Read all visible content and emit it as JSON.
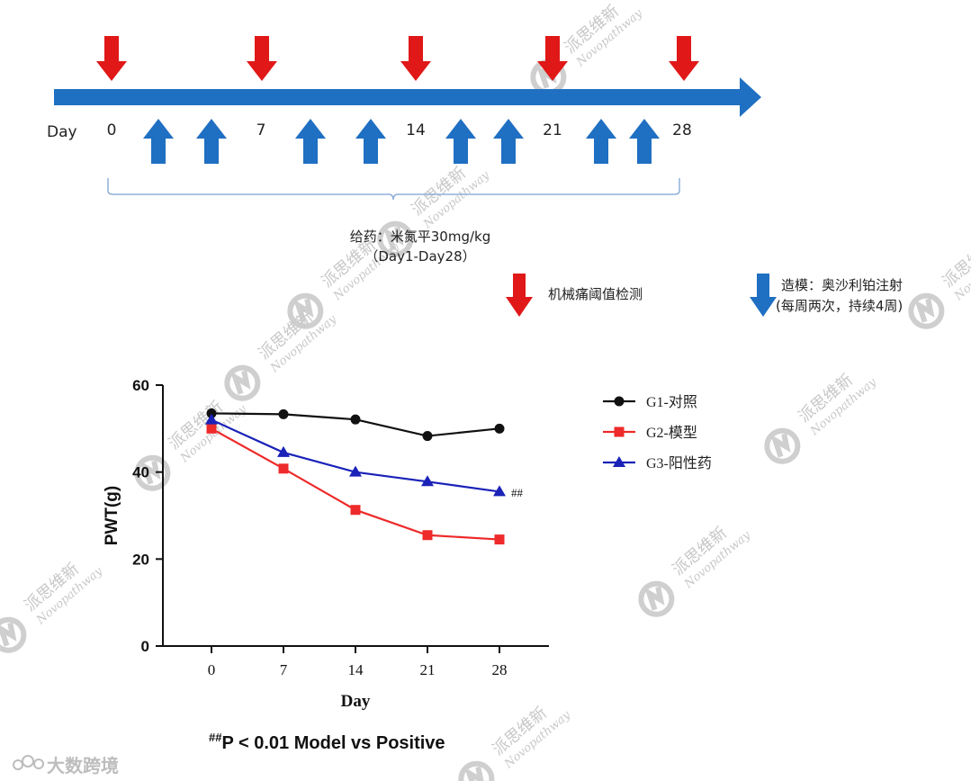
{
  "timeline": {
    "day_label": "Day",
    "day_ticks": [
      "0",
      "7",
      "14",
      "21",
      "28"
    ],
    "arrow_color": "#1f6fc2",
    "test_arrow_color": "#e01818",
    "dosing_text": "给药：米氮平30mg/kg",
    "dosing_range": "（Day1-Day28）",
    "legend_test_label": "机械痛阈值检测",
    "legend_model_label": "造模：奥沙利铂注射",
    "legend_model_sub": "(每周两次，持续4周)"
  },
  "chart_data": {
    "type": "line",
    "x": [
      0,
      7,
      14,
      21,
      28
    ],
    "xlabel": "Day",
    "ylabel": "PWT(g)",
    "ylim": [
      0,
      60
    ],
    "yticks": [
      0,
      20,
      40,
      60
    ],
    "grid": false,
    "legend_position": "right",
    "series": [
      {
        "name": "G1-对照",
        "values": [
          53.5,
          53.3,
          52.1,
          48.3,
          50.0
        ],
        "color": "#111111",
        "marker": "circle"
      },
      {
        "name": "G2-模型",
        "values": [
          50.0,
          40.8,
          31.3,
          25.5,
          24.5
        ],
        "color": "#ee2a2a",
        "marker": "square"
      },
      {
        "name": "G3-阳性药",
        "values": [
          52.0,
          44.5,
          40.0,
          37.8,
          35.5
        ],
        "color": "#1a22b8",
        "marker": "triangle"
      }
    ],
    "annotations": [
      {
        "text": "##",
        "series": "G3-阳性药",
        "x": 28
      }
    ],
    "footnote_sup": "##",
    "footnote_text": "P < 0.01 Model vs Positive"
  },
  "watermark": {
    "brand_cn": "派思维新",
    "brand_en": "Novopathway",
    "corner_logo": "大数跨境"
  }
}
